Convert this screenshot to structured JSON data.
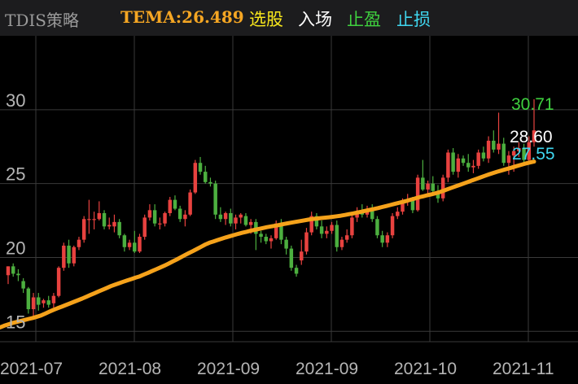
{
  "header": {
    "title": "TDIS策略",
    "tema": "TEMA:26.489",
    "buttons": [
      "选股",
      "入场",
      "止盈",
      "止损"
    ]
  },
  "colors": {
    "background": "#000000",
    "header_bg": "#1c1c1e",
    "up": "#e8423f",
    "down": "#4caf3f",
    "tema_line": "#f5a21b",
    "grid": "#3a3a3a",
    "high_label": "#3fd13f",
    "close_label": "#ffffff",
    "low_label": "#3fd7f0"
  },
  "chart_data": {
    "type": "candlestick",
    "ylim": [
      14.3,
      35.0
    ],
    "yticks": [
      15,
      20,
      25,
      30
    ],
    "x_labels": [
      "2021-07",
      "2021-08",
      "2021-09",
      "2021-09",
      "2021-10",
      "2021-11"
    ],
    "grid": true,
    "annotations": {
      "high": "30.71",
      "close": "28.60",
      "low": "27.55"
    },
    "candles": [
      [
        18.8,
        19.4,
        18.2,
        19.4
      ],
      [
        19.4,
        19.6,
        18.7,
        18.9
      ],
      [
        18.9,
        19.2,
        18.4,
        18.8
      ],
      [
        18.4,
        18.6,
        17.6,
        17.9
      ],
      [
        17.9,
        18.0,
        16.2,
        16.5
      ],
      [
        16.5,
        17.6,
        15.8,
        17.3
      ],
      [
        17.3,
        17.6,
        16.4,
        16.8
      ],
      [
        16.9,
        17.2,
        16.6,
        17.1
      ],
      [
        17.1,
        17.4,
        16.6,
        16.8
      ],
      [
        16.9,
        17.6,
        16.6,
        17.4
      ],
      [
        17.4,
        19.4,
        17.3,
        19.3
      ],
      [
        19.3,
        21.0,
        19.1,
        20.8
      ],
      [
        20.8,
        21.2,
        19.3,
        19.6
      ],
      [
        19.6,
        20.8,
        19.4,
        20.7
      ],
      [
        20.7,
        21.4,
        20.5,
        21.2
      ],
      [
        21.2,
        22.8,
        21.0,
        22.6
      ],
      [
        22.6,
        23.9,
        21.6,
        22.6
      ],
      [
        22.6,
        23.1,
        21.9,
        22.6
      ],
      [
        22.6,
        23.8,
        22.5,
        23.0
      ],
      [
        23.0,
        23.2,
        21.9,
        22.1
      ],
      [
        22.1,
        22.7,
        21.9,
        22.2
      ],
      [
        22.1,
        22.9,
        21.7,
        22.4
      ],
      [
        22.4,
        22.6,
        21.3,
        21.5
      ],
      [
        21.5,
        21.6,
        20.4,
        20.7
      ],
      [
        20.7,
        21.2,
        20.5,
        21.0
      ],
      [
        21.0,
        21.8,
        20.3,
        20.4
      ],
      [
        20.4,
        21.6,
        20.3,
        21.4
      ],
      [
        21.4,
        22.9,
        21.2,
        22.7
      ],
      [
        22.7,
        23.6,
        22.5,
        23.2
      ],
      [
        23.2,
        23.6,
        22.1,
        22.3
      ],
      [
        22.3,
        22.7,
        21.9,
        22.3
      ],
      [
        22.3,
        23.1,
        22.1,
        23.0
      ],
      [
        23.0,
        24.1,
        22.8,
        23.9
      ],
      [
        23.9,
        24.2,
        23.2,
        23.3
      ],
      [
        23.3,
        23.5,
        22.4,
        22.6
      ],
      [
        22.6,
        23.2,
        22.1,
        22.9
      ],
      [
        22.9,
        24.6,
        22.8,
        24.4
      ],
      [
        24.4,
        26.6,
        24.3,
        26.4
      ],
      [
        26.4,
        26.8,
        25.6,
        25.8
      ],
      [
        25.8,
        26.2,
        25.0,
        25.1
      ],
      [
        25.1,
        25.4,
        24.8,
        25.0
      ],
      [
        25.0,
        25.2,
        22.6,
        22.9
      ],
      [
        22.9,
        23.4,
        22.4,
        22.6
      ],
      [
        22.6,
        23.1,
        22.2,
        23.0
      ],
      [
        23.0,
        23.3,
        22.1,
        22.3
      ],
      [
        22.3,
        22.9,
        21.9,
        22.7
      ],
      [
        22.7,
        23.0,
        22.3,
        22.9
      ],
      [
        22.8,
        23.0,
        22.1,
        22.2
      ],
      [
        22.2,
        22.6,
        21.6,
        22.4
      ],
      [
        22.4,
        22.6,
        20.5,
        21.6
      ],
      [
        21.6,
        21.8,
        21.0,
        21.4
      ],
      [
        21.4,
        21.6,
        20.9,
        21.1
      ],
      [
        21.1,
        21.5,
        20.6,
        21.3
      ],
      [
        21.3,
        22.5,
        21.2,
        22.3
      ],
      [
        22.3,
        22.6,
        20.9,
        21.2
      ],
      [
        21.2,
        21.4,
        20.2,
        20.6
      ],
      [
        20.6,
        20.8,
        19.1,
        19.3
      ],
      [
        19.3,
        19.5,
        18.7,
        18.9
      ],
      [
        19.8,
        21.2,
        19.5,
        20.4
      ],
      [
        20.4,
        22.0,
        20.2,
        21.7
      ],
      [
        21.7,
        23.1,
        21.5,
        22.8
      ],
      [
        22.8,
        23.0,
        21.9,
        22.1
      ],
      [
        22.1,
        22.5,
        21.3,
        21.6
      ],
      [
        21.6,
        22.1,
        21.3,
        21.8
      ],
      [
        21.8,
        22.4,
        21.6,
        22.2
      ],
      [
        22.2,
        22.5,
        20.4,
        20.7
      ],
      [
        20.7,
        21.4,
        20.5,
        21.2
      ],
      [
        21.2,
        21.9,
        21.0,
        21.5
      ],
      [
        21.5,
        22.9,
        21.3,
        22.7
      ],
      [
        22.7,
        23.4,
        22.4,
        23.1
      ],
      [
        23.1,
        23.6,
        22.7,
        22.9
      ],
      [
        22.9,
        23.5,
        22.7,
        23.3
      ],
      [
        23.3,
        23.6,
        22.4,
        22.6
      ],
      [
        22.6,
        22.8,
        21.3,
        21.5
      ],
      [
        21.5,
        21.8,
        20.7,
        21.0
      ],
      [
        21.0,
        21.7,
        20.7,
        21.5
      ],
      [
        21.5,
        23.0,
        21.3,
        22.8
      ],
      [
        22.8,
        23.4,
        22.6,
        23.1
      ],
      [
        23.1,
        24.0,
        22.9,
        23.8
      ],
      [
        23.8,
        24.3,
        23.5,
        23.9
      ],
      [
        23.9,
        24.1,
        23.0,
        23.2
      ],
      [
        23.2,
        25.6,
        23.1,
        25.4
      ],
      [
        25.4,
        26.6,
        24.5,
        24.6
      ],
      [
        24.6,
        25.2,
        24.3,
        25.0
      ],
      [
        25.0,
        25.5,
        24.3,
        24.5
      ],
      [
        24.5,
        24.9,
        23.7,
        24.0
      ],
      [
        24.0,
        25.6,
        23.8,
        25.4
      ],
      [
        25.4,
        27.3,
        25.1,
        27.1
      ],
      [
        27.1,
        27.4,
        25.6,
        25.8
      ],
      [
        25.8,
        27.0,
        25.4,
        26.7
      ],
      [
        26.7,
        26.9,
        26.2,
        26.4
      ],
      [
        26.4,
        27.0,
        25.8,
        26.1
      ],
      [
        26.1,
        26.6,
        25.7,
        26.2
      ],
      [
        26.2,
        27.3,
        26.0,
        27.1
      ],
      [
        27.1,
        27.5,
        26.5,
        26.7
      ],
      [
        26.7,
        28.2,
        26.4,
        27.9
      ],
      [
        27.9,
        28.6,
        27.1,
        27.3
      ],
      [
        27.3,
        29.8,
        27.0,
        27.7
      ],
      [
        27.7,
        28.1,
        26.2,
        26.4
      ],
      [
        26.4,
        27.2,
        25.6,
        26.9
      ],
      [
        26.9,
        27.5,
        25.8,
        27.2
      ],
      [
        27.2,
        27.8,
        26.8,
        27.4
      ],
      [
        27.4,
        27.7,
        26.4,
        26.6
      ],
      [
        26.6,
        28.2,
        26.4,
        27.8
      ],
      [
        27.8,
        30.71,
        27.5,
        28.6
      ]
    ],
    "tema": [
      15.27,
      15.38,
      15.47,
      15.56,
      15.63,
      15.7,
      15.77,
      15.84,
      15.91,
      15.99,
      16.08,
      16.2,
      16.33,
      16.45,
      16.56,
      16.67,
      16.78,
      16.89,
      17.0,
      17.11,
      17.22,
      17.34,
      17.46,
      17.58,
      17.7,
      17.82,
      17.94,
      18.06,
      18.16,
      18.26,
      18.36,
      18.45,
      18.54,
      18.63,
      18.72,
      18.84,
      18.96,
      19.08,
      19.2,
      19.32,
      19.44,
      19.58,
      19.72,
      19.86,
      20.01,
      20.16,
      20.3,
      20.44,
      20.58,
      20.73,
      20.88,
      21.0,
      21.09,
      21.18,
      21.27,
      21.36,
      21.44,
      21.52,
      21.6,
      21.67,
      21.74,
      21.81,
      21.87,
      21.93,
      21.99,
      22.05,
      22.1,
      22.15,
      22.2,
      22.26,
      22.31,
      22.36,
      22.41,
      22.46,
      22.51,
      22.56,
      22.6,
      22.63,
      22.66,
      22.69,
      22.72,
      22.75,
      22.79,
      22.83,
      22.88,
      22.93,
      22.98,
      23.04,
      23.1,
      23.16,
      23.22,
      23.28,
      23.34,
      23.41,
      23.48,
      23.55,
      23.62,
      23.69,
      23.76,
      23.83,
      23.91,
      23.99,
      24.07,
      24.14,
      24.21,
      24.27,
      24.34,
      24.42,
      24.52,
      24.62,
      24.72,
      24.82,
      24.92,
      25.02,
      25.12,
      25.22,
      25.32,
      25.42,
      25.52,
      25.62,
      25.71,
      25.8,
      25.88,
      25.96,
      26.04,
      26.12,
      26.2,
      26.28,
      26.36,
      26.43,
      26.49
    ]
  }
}
